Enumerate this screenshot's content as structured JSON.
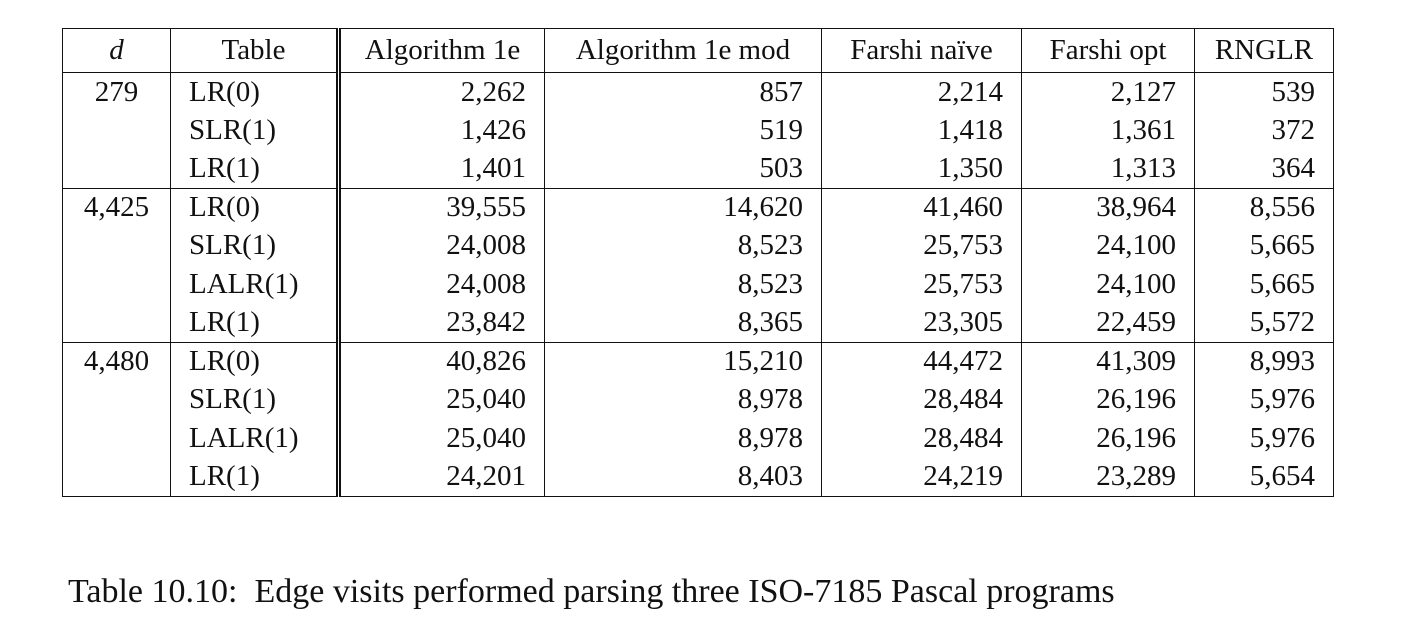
{
  "table": {
    "headers": [
      "d",
      "Table",
      "Algorithm 1e",
      "Algorithm 1e mod",
      "Farshi naïve",
      "Farshi opt",
      "RNGLR"
    ],
    "rows": [
      [
        "279",
        "LR(0)",
        "2,262",
        "857",
        "2,214",
        "2,127",
        "539"
      ],
      [
        "",
        "SLR(1)",
        "1,426",
        "519",
        "1,418",
        "1,361",
        "372"
      ],
      [
        "",
        "LR(1)",
        "1,401",
        "503",
        "1,350",
        "1,313",
        "364"
      ],
      [
        "4,425",
        "LR(0)",
        "39,555",
        "14,620",
        "41,460",
        "38,964",
        "8,556"
      ],
      [
        "",
        "SLR(1)",
        "24,008",
        "8,523",
        "25,753",
        "24,100",
        "5,665"
      ],
      [
        "",
        "LALR(1)",
        "24,008",
        "8,523",
        "25,753",
        "24,100",
        "5,665"
      ],
      [
        "",
        "LR(1)",
        "23,842",
        "8,365",
        "23,305",
        "22,459",
        "5,572"
      ],
      [
        "4,480",
        "LR(0)",
        "40,826",
        "15,210",
        "44,472",
        "41,309",
        "8,993"
      ],
      [
        "",
        "SLR(1)",
        "25,040",
        "8,978",
        "28,484",
        "26,196",
        "5,976"
      ],
      [
        "",
        "LALR(1)",
        "25,040",
        "8,978",
        "28,484",
        "26,196",
        "5,976"
      ],
      [
        "",
        "LR(1)",
        "24,201",
        "8,403",
        "24,219",
        "23,289",
        "5,654"
      ]
    ]
  },
  "caption": {
    "label": "Table 10.10:",
    "text": "Edge visits performed parsing three ISO-7185 Pascal programs"
  },
  "colors": {
    "text": "#111111",
    "background": "#ffffff",
    "rule": "#111111"
  }
}
